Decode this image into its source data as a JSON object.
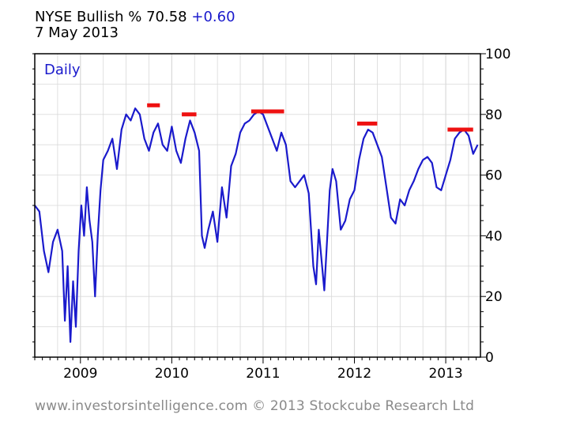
{
  "header": {
    "symbol": "NYSE Bullish %",
    "value": "70.58",
    "change": "+0.60",
    "date": "7 May 2013"
  },
  "footer": {
    "credit": "www.investorsintelligence.com  © 2013 Stockcube Research Ltd"
  },
  "colors": {
    "line": "#1a1acc",
    "highlight": "#ee1111",
    "grid": "#d9d9d9",
    "frame": "#000000",
    "footer_text": "#8a8a8a"
  },
  "chart_data": {
    "type": "line",
    "title": "NYSE Bullish %",
    "series_label": "Daily",
    "xlabel": "",
    "ylabel": "",
    "ylim": [
      0,
      100
    ],
    "xlim": [
      2008.5,
      2013.38
    ],
    "yticks": [
      0,
      20,
      40,
      60,
      80,
      100
    ],
    "xticks": [
      "2009",
      "2010",
      "2011",
      "2012",
      "2013"
    ],
    "grid": true,
    "y_axis_side": "right",
    "series": [
      {
        "x": [
          2008.5,
          2008.55,
          2008.6,
          2008.65,
          2008.7,
          2008.75,
          2008.8,
          2008.83,
          2008.86,
          2008.89,
          2008.92,
          2008.95,
          2008.98,
          2009.01,
          2009.04,
          2009.07,
          2009.1,
          2009.13,
          2009.16,
          2009.19,
          2009.22,
          2009.25,
          2009.3,
          2009.35,
          2009.4,
          2009.45,
          2009.5,
          2009.55,
          2009.6,
          2009.65,
          2009.7,
          2009.75,
          2009.8,
          2009.85,
          2009.9,
          2009.95,
          2010.0,
          2010.05,
          2010.1,
          2010.15,
          2010.2,
          2010.25,
          2010.3,
          2010.33,
          2010.36,
          2010.4,
          2010.45,
          2010.5,
          2010.55,
          2010.6,
          2010.65,
          2010.7,
          2010.75,
          2010.8,
          2010.85,
          2010.9,
          2010.95,
          2011.0,
          2011.05,
          2011.1,
          2011.15,
          2011.2,
          2011.25,
          2011.3,
          2011.35,
          2011.4,
          2011.45,
          2011.5,
          2011.55,
          2011.58,
          2011.61,
          2011.64,
          2011.67,
          2011.7,
          2011.73,
          2011.76,
          2011.8,
          2011.85,
          2011.9,
          2011.95,
          2012.0,
          2012.05,
          2012.1,
          2012.15,
          2012.2,
          2012.25,
          2012.3,
          2012.35,
          2012.4,
          2012.45,
          2012.5,
          2012.55,
          2012.6,
          2012.65,
          2012.7,
          2012.75,
          2012.8,
          2012.85,
          2012.9,
          2012.95,
          2013.0,
          2013.05,
          2013.1,
          2013.15,
          2013.2,
          2013.25,
          2013.3,
          2013.35
        ],
        "y": [
          50,
          48,
          35,
          28,
          38,
          42,
          35,
          12,
          30,
          5,
          25,
          10,
          35,
          50,
          40,
          56,
          45,
          38,
          20,
          40,
          55,
          65,
          68,
          72,
          62,
          75,
          80,
          78,
          82,
          80,
          72,
          68,
          74,
          77,
          70,
          68,
          76,
          68,
          64,
          72,
          78,
          74,
          68,
          40,
          36,
          42,
          48,
          38,
          56,
          46,
          63,
          67,
          74,
          77,
          78,
          80,
          81,
          80,
          76,
          72,
          68,
          74,
          70,
          58,
          56,
          58,
          60,
          54,
          30,
          24,
          42,
          32,
          22,
          38,
          55,
          62,
          58,
          42,
          45,
          52,
          55,
          65,
          72,
          75,
          74,
          70,
          66,
          56,
          46,
          44,
          52,
          50,
          55,
          58,
          62,
          65,
          66,
          64,
          56,
          55,
          60,
          65,
          72,
          74,
          75,
          73,
          67,
          70
        ]
      }
    ],
    "annotations": [
      {
        "x0": 2009.73,
        "x1": 2009.87,
        "y": 83
      },
      {
        "x0": 2010.11,
        "x1": 2010.27,
        "y": 80
      },
      {
        "x0": 2010.87,
        "x1": 2011.23,
        "y": 81
      },
      {
        "x0": 2012.03,
        "x1": 2012.25,
        "y": 77
      },
      {
        "x0": 2013.02,
        "x1": 2013.3,
        "y": 75
      }
    ]
  }
}
